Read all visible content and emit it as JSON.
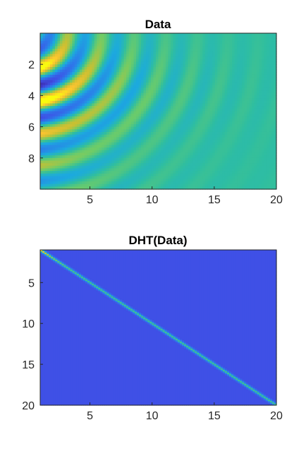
{
  "chart_data": [
    {
      "type": "heatmap",
      "title": "Data",
      "xlabel": "",
      "ylabel": "",
      "xlim": [
        1,
        20
      ],
      "ylim": [
        0,
        10
      ],
      "y_reversed": true,
      "x_ticks": [
        5,
        10,
        15,
        20
      ],
      "y_ticks": [
        2,
        4,
        6,
        8
      ],
      "colormap": "parula",
      "grid": false,
      "z_description": "oscillating Bessel-like fringes; strongest (yellow/blue) near small x and y around 1-7, decaying toward green at large x"
    },
    {
      "type": "heatmap",
      "title": "DHT(Data)",
      "xlabel": "",
      "ylabel": "",
      "xlim": [
        1,
        20
      ],
      "ylim": [
        1,
        20
      ],
      "y_reversed": true,
      "x_ticks": [
        5,
        10,
        15,
        20
      ],
      "y_ticks": [
        5,
        10,
        15,
        20
      ],
      "colormap": "parula",
      "grid": false,
      "z_description": "narrow diagonal band along y = x; brightest (yellow) at top-left, cyan elsewhere, background deep blue"
    }
  ],
  "colors": {
    "background": "#ffffff",
    "axis": "#262626",
    "parula_blue": "#3e4ee6",
    "parula_green": "#2fbf8e",
    "parula_yellow": "#f5c42c"
  }
}
